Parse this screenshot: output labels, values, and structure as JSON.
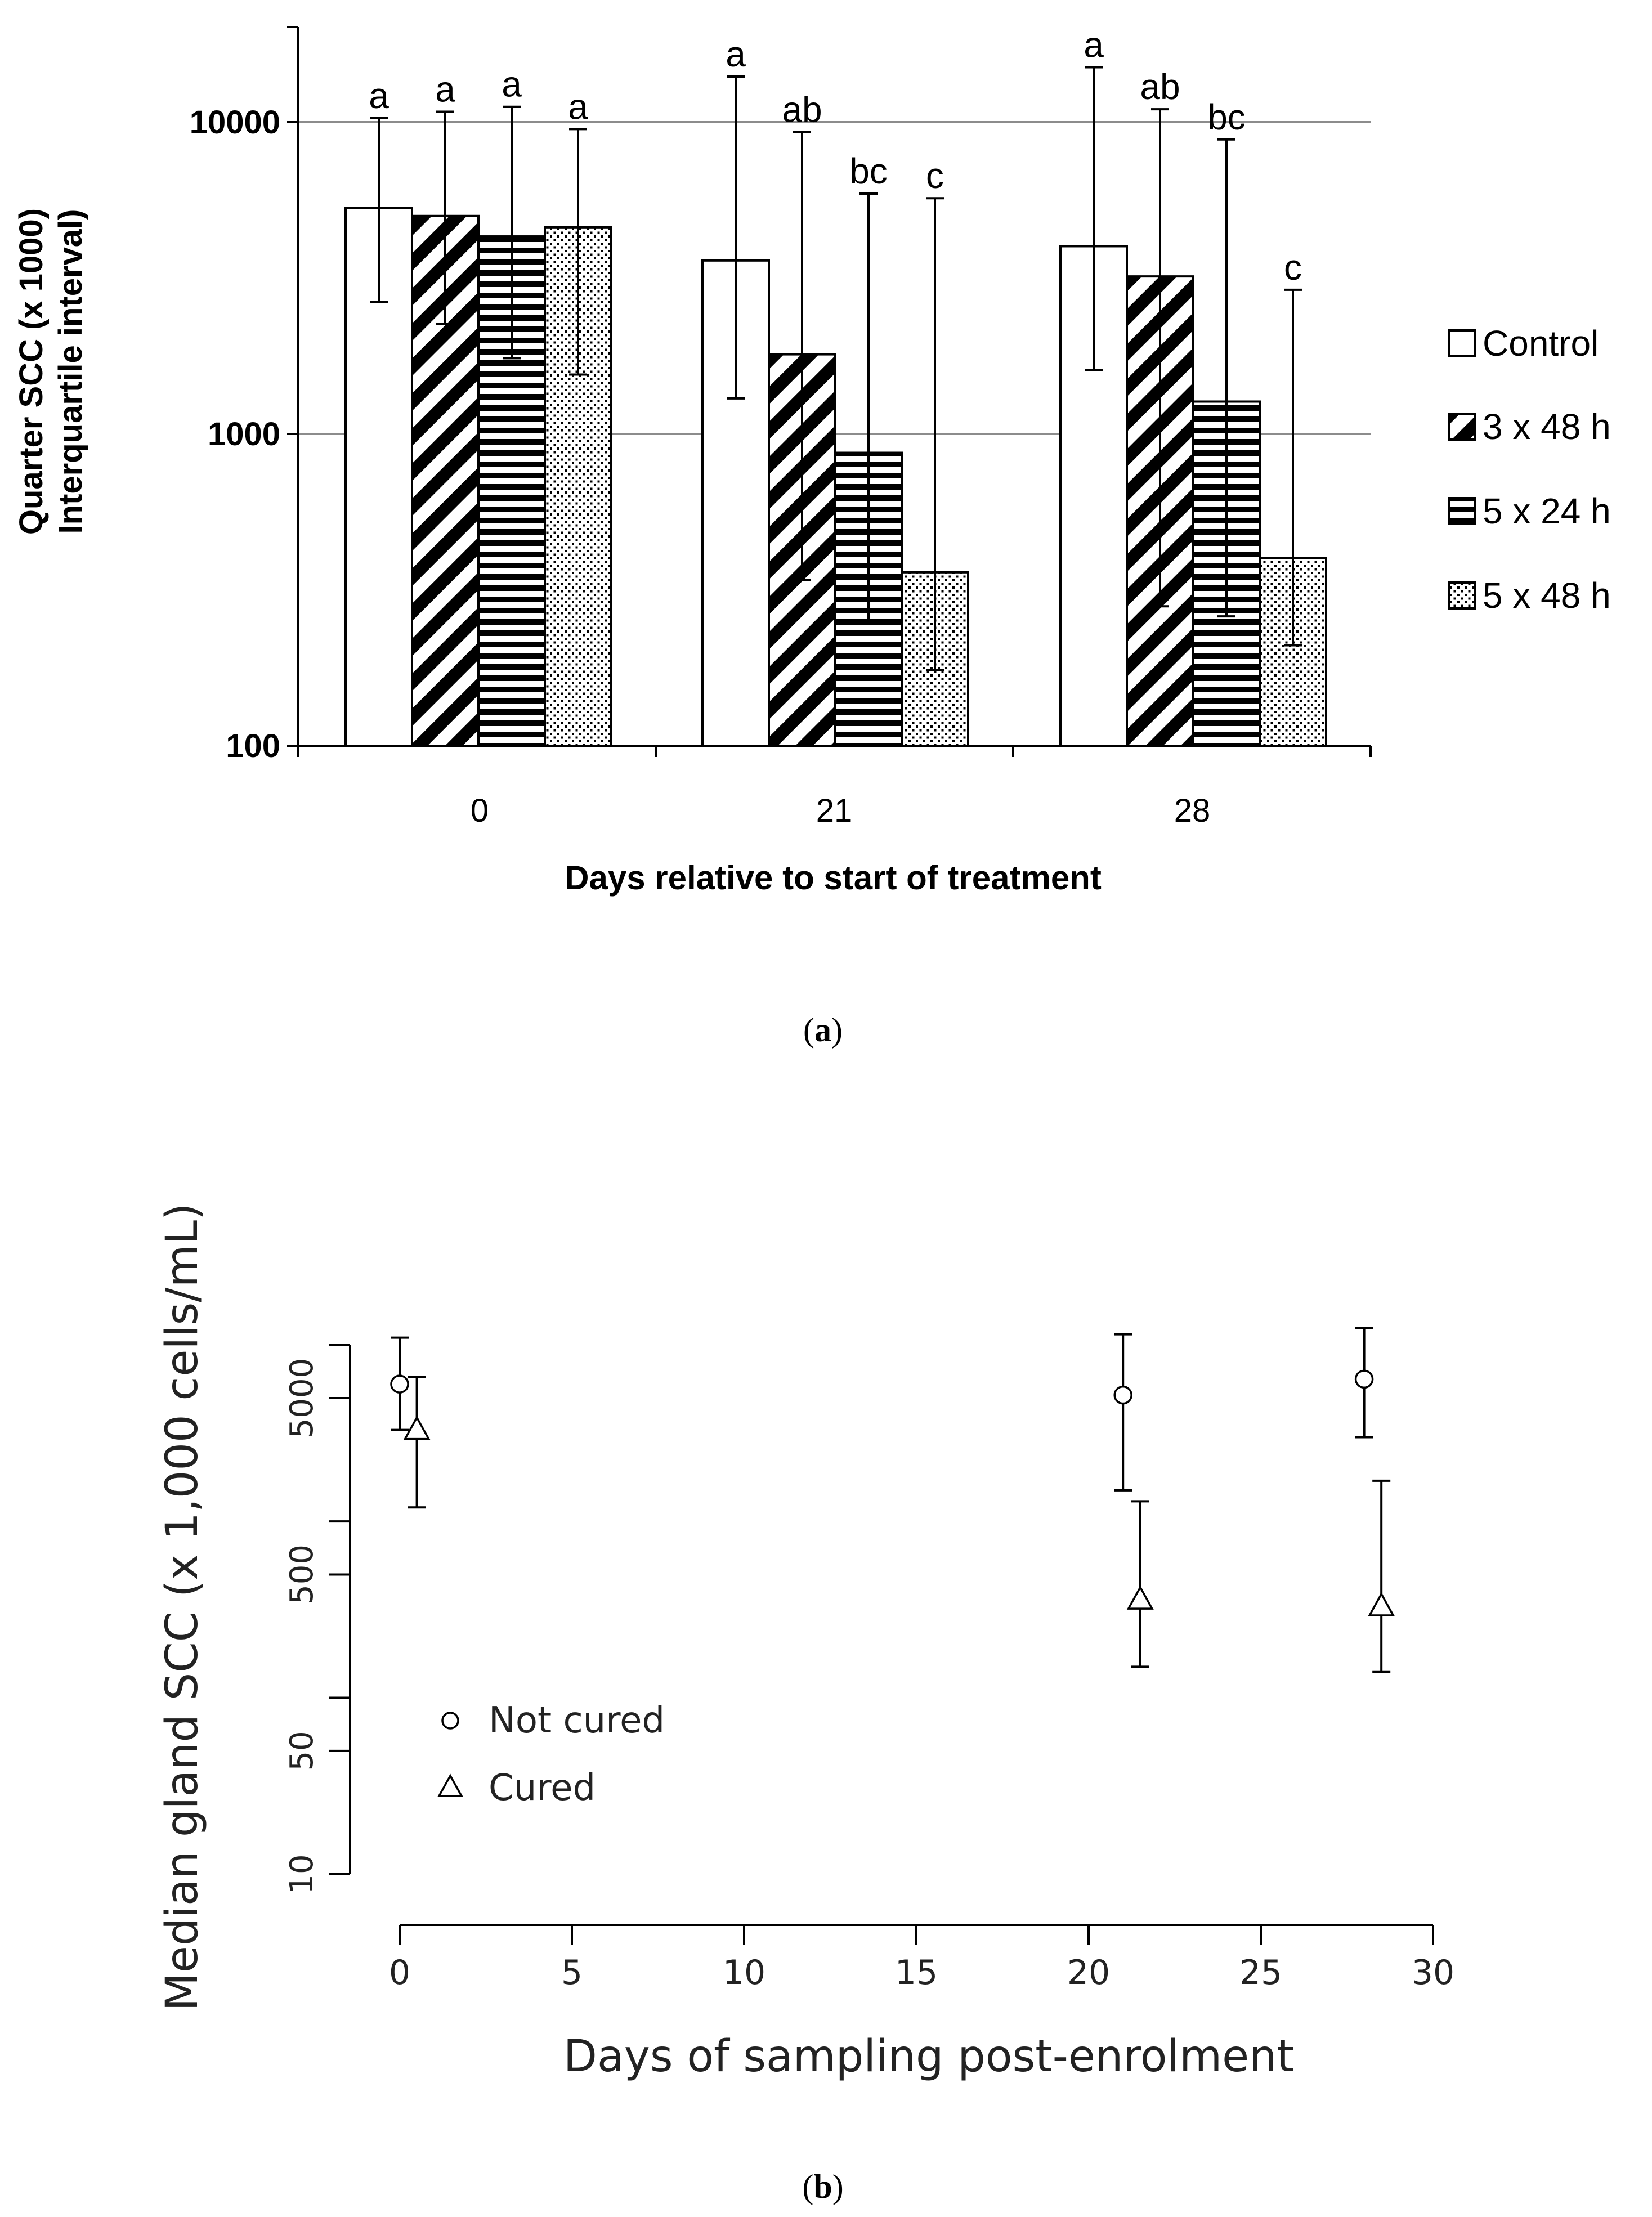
{
  "chart_data": [
    {
      "type": "bar",
      "panel_label": "a",
      "xlabel": "Days relative to start of treatment",
      "ylabel_line1": "Quarter SCC  (x 1000)",
      "ylabel_line2": "Interquartile interval)",
      "yscale": "log",
      "ylim": [
        100,
        20000
      ],
      "yticks": [
        {
          "value": 100,
          "label": "100"
        },
        {
          "value": 1000,
          "label": "1000"
        },
        {
          "value": 10000,
          "label": "10000"
        }
      ],
      "categories": [
        "0",
        "21",
        "28"
      ],
      "legend_position": "right",
      "series": [
        {
          "name": "Control",
          "pattern": "white",
          "values": [
            5300,
            3600,
            4000
          ],
          "error_low": [
            2650,
            1300,
            1600
          ],
          "error_high": [
            10300,
            14000,
            15000
          ],
          "letters": [
            "a",
            "a",
            "a"
          ]
        },
        {
          "name": "3 x 48 h",
          "pattern": "diagonal",
          "values": [
            5000,
            1800,
            3200
          ],
          "error_low": [
            2250,
            340,
            280
          ],
          "error_high": [
            10800,
            9300,
            11000
          ],
          "letters": [
            "a",
            "ab",
            "ab"
          ]
        },
        {
          "name": "5 x 24 h",
          "pattern": "horizontal",
          "values": [
            4300,
            870,
            1270
          ],
          "error_low": [
            1750,
            250,
            260
          ],
          "error_high": [
            11200,
            5900,
            8800
          ],
          "letters": [
            "a",
            "bc",
            "bc"
          ]
        },
        {
          "name": "5 x 48 h",
          "pattern": "dotted",
          "values": [
            4600,
            360,
            400
          ],
          "error_low": [
            1550,
            175,
            210
          ],
          "error_high": [
            9500,
            5700,
            2900
          ],
          "letters": [
            "a",
            "c",
            "c"
          ]
        }
      ]
    },
    {
      "type": "scatter",
      "panel_label": "b",
      "xlabel": "Days of sampling post-enrolment",
      "ylabel": "Median gland SCC (x 1,000 cells/mL)",
      "yscale": "log",
      "xlim": [
        -1.5,
        30
      ],
      "ylim": [
        10,
        10000
      ],
      "xticks": [
        0,
        5,
        10,
        15,
        20,
        25,
        30
      ],
      "yticks": [
        10,
        50,
        500,
        5000
      ],
      "legend_position": "bottom-left",
      "series": [
        {
          "name": "Not cured",
          "marker": "circle",
          "points": [
            {
              "x": 0,
              "y": 6000,
              "low": 3300,
              "high": 11000
            },
            {
              "x": 21,
              "y": 5200,
              "low": 1500,
              "high": 11500
            },
            {
              "x": 28,
              "y": 6400,
              "low": 3000,
              "high": 12500
            }
          ]
        },
        {
          "name": "Cured",
          "marker": "triangle",
          "points": [
            {
              "x": 0.5,
              "y": 3300,
              "low": 1200,
              "high": 6600
            },
            {
              "x": 21.5,
              "y": 360,
              "low": 150,
              "high": 1300
            },
            {
              "x": 28.5,
              "y": 330,
              "low": 140,
              "high": 1700
            }
          ]
        }
      ]
    }
  ]
}
